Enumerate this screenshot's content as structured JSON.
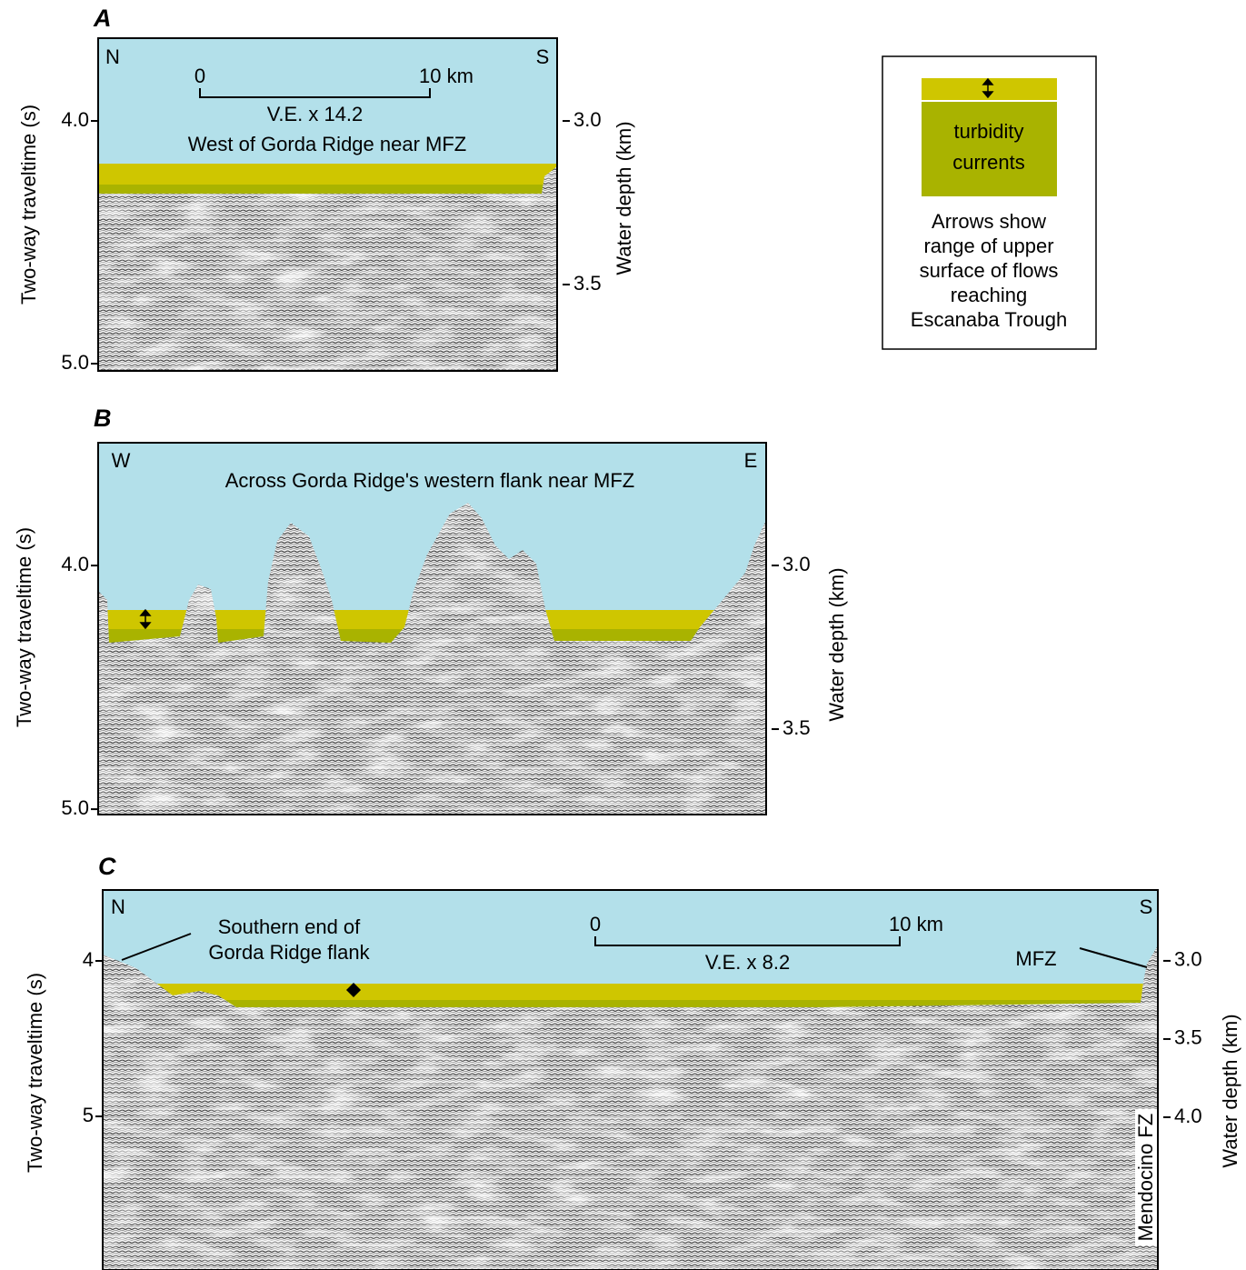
{
  "panels": [
    {
      "label": "A",
      "left_axis": {
        "title": "Two-way traveltime (s)",
        "lim": [
          3.659,
          5.03
        ],
        "ticks": [
          {
            "value": 4,
            "label": "4.0"
          },
          {
            "value": 5,
            "label": "5.0"
          }
        ]
      },
      "right_axis": {
        "title": "Water depth (km)",
        "lim": [
          2.747,
          3.764
        ],
        "ticks": [
          {
            "value": 3,
            "label": "3.0"
          },
          {
            "value": 3.5,
            "label": "3.5"
          }
        ]
      },
      "left_end": "N",
      "right_end": "S",
      "profile_title": "West of Gorda Ridge near MFZ",
      "scale_bar": {
        "start": "0",
        "end": "10 km",
        "exaggeration": "V.E. x 14.2"
      }
    },
    {
      "label": "B",
      "left_axis": {
        "title": "Two-way traveltime (s)",
        "lim": [
          3.496,
          5.022
        ],
        "ticks": [
          {
            "value": 4,
            "label": "4.0"
          },
          {
            "value": 5,
            "label": "5.0"
          }
        ]
      },
      "right_axis": {
        "title": "Water depth (km)",
        "lim": [
          2.625,
          3.761
        ],
        "ticks": [
          {
            "value": 3,
            "label": "3.0"
          },
          {
            "value": 3.5,
            "label": "3.5"
          }
        ]
      },
      "left_end": "W",
      "right_end": "E",
      "profile_title": "Across Gorda Ridge's western flank near MFZ"
    },
    {
      "label": "C",
      "left_axis": {
        "title": "Two-way traveltime (s)",
        "lim": [
          3.544,
          5.988
        ],
        "ticks": [
          4,
          5
        ]
      },
      "right_axis": {
        "title": "Water depth (km)",
        "lim": [
          2.547,
          4.977
        ],
        "ticks": [
          {
            "value": 3,
            "label": "3.0"
          },
          {
            "value": 3.5,
            "label": "3.5"
          },
          {
            "value": 4,
            "label": "4.0"
          }
        ]
      },
      "left_end": "N",
      "right_end": "S",
      "scale_bar": {
        "start": "0",
        "end": "10 km",
        "exaggeration": "V.E. x 8.2"
      },
      "annotations": {
        "ridge_end": [
          "Southern end of",
          "Gorda Ridge flank"
        ],
        "mfz": "MFZ",
        "fracture_zone": "Mendocino FZ"
      }
    }
  ],
  "legend": {
    "band_label": [
      "turbidity",
      "currents"
    ],
    "caption": [
      "Arrows show",
      "range of upper",
      "surface of flows",
      "reaching",
      "Escanaba Trough"
    ]
  }
}
